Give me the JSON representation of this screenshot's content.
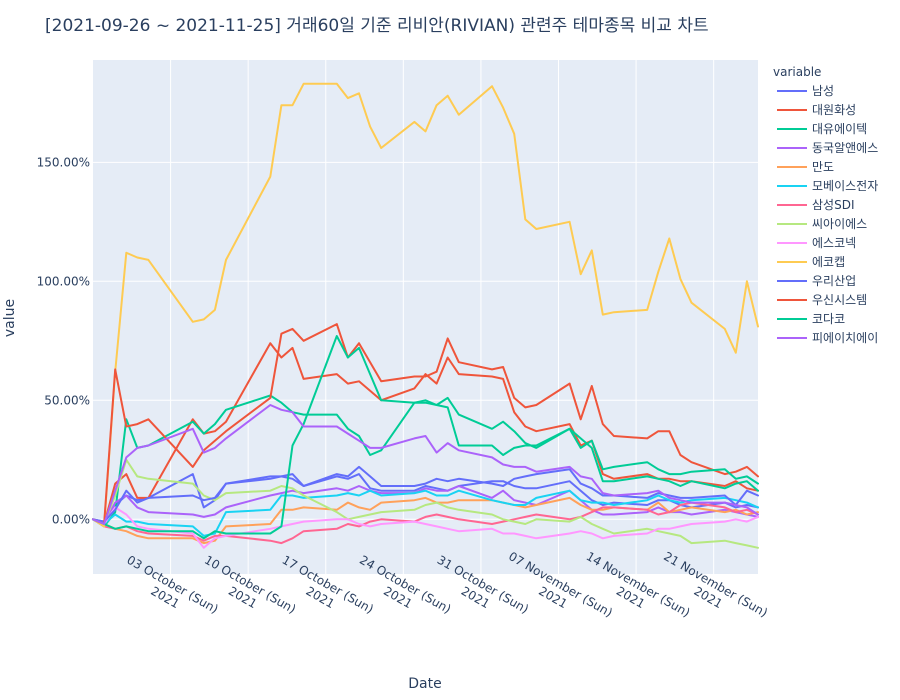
{
  "chart_data": {
    "type": "line",
    "title": "[2021-09-26 ~ 2021-11-25] 거래60일 기준 리비안(RIVIAN) 관련주 테마종목 비교 차트",
    "xlabel": "Date",
    "ylabel": "value",
    "legend_title": "variable",
    "legend_position": "right",
    "grid": true,
    "background": "#e5ecf6",
    "x_range": [
      "2021-09-26",
      "2021-11-25"
    ],
    "ylim": [
      -0.23,
      1.93
    ],
    "y_ticks": [
      {
        "value": 0.0,
        "label": "0.00%"
      },
      {
        "value": 0.5,
        "label": "50.00%"
      },
      {
        "value": 1.0,
        "label": "100.00%"
      },
      {
        "value": 1.5,
        "label": "150.00%"
      }
    ],
    "x_ticks": [
      {
        "date": "2021-10-03",
        "line1": "03 October (Sun)",
        "line2": "2021"
      },
      {
        "date": "2021-10-10",
        "line1": "10 October (Sun)",
        "line2": "2021"
      },
      {
        "date": "2021-10-17",
        "line1": "17 October (Sun)",
        "line2": "2021"
      },
      {
        "date": "2021-10-24",
        "line1": "24 October (Sun)",
        "line2": "2021"
      },
      {
        "date": "2021-10-31",
        "line1": "31 October (Sun)",
        "line2": "2021"
      },
      {
        "date": "2021-11-07",
        "line1": "07 November (Sun)",
        "line2": "2021"
      },
      {
        "date": "2021-11-14",
        "line1": "14 November (Sun)",
        "line2": "2021"
      },
      {
        "date": "2021-11-21",
        "line1": "21 November (Sun)",
        "line2": "2021"
      }
    ],
    "dates": [
      "2021-09-26",
      "2021-09-27",
      "2021-09-28",
      "2021-09-29",
      "2021-09-30",
      "2021-10-01",
      "2021-10-05",
      "2021-10-06",
      "2021-10-07",
      "2021-10-08",
      "2021-10-12",
      "2021-10-13",
      "2021-10-14",
      "2021-10-15",
      "2021-10-18",
      "2021-10-19",
      "2021-10-20",
      "2021-10-21",
      "2021-10-22",
      "2021-10-25",
      "2021-10-26",
      "2021-10-27",
      "2021-10-28",
      "2021-10-29",
      "2021-11-01",
      "2021-11-02",
      "2021-11-03",
      "2021-11-04",
      "2021-11-05",
      "2021-11-08",
      "2021-11-09",
      "2021-11-10",
      "2021-11-11",
      "2021-11-12",
      "2021-11-15",
      "2021-11-16",
      "2021-11-17",
      "2021-11-18",
      "2021-11-19",
      "2021-11-22",
      "2021-11-23",
      "2021-11-24",
      "2021-11-25"
    ],
    "series": [
      {
        "name": "남성",
        "color": "#636efa",
        "values": [
          0,
          -0.01,
          0.06,
          0.1,
          0.08,
          0.09,
          0.19,
          0.05,
          0.08,
          0.15,
          0.17,
          0.18,
          0.17,
          0.14,
          0.18,
          0.17,
          0.19,
          0.13,
          0.12,
          0.12,
          0.14,
          0.13,
          0.12,
          0.14,
          0.16,
          0.16,
          0.14,
          0.13,
          0.13,
          0.16,
          0.12,
          0.08,
          0.06,
          0.07,
          0.06,
          0.08,
          0.08,
          0.06,
          0.05,
          0.07,
          0.05,
          0.06,
          0.05
        ]
      },
      {
        "name": "대원화성",
        "color": "#EF553B",
        "values": [
          0,
          -0.02,
          0.15,
          0.19,
          0.09,
          0.09,
          0.42,
          0.36,
          0.37,
          0.41,
          0.74,
          0.68,
          0.72,
          0.59,
          0.61,
          0.57,
          0.58,
          0.54,
          0.5,
          0.55,
          0.61,
          0.57,
          0.68,
          0.61,
          0.6,
          0.59,
          0.45,
          0.39,
          0.37,
          0.4,
          0.31,
          0.33,
          0.19,
          0.17,
          0.19,
          0.17,
          0.17,
          0.16,
          0.16,
          0.14,
          0.16,
          0.13,
          0.12
        ]
      },
      {
        "name": "대유에이텍",
        "color": "#00cc96",
        "values": [
          0,
          -0.03,
          0.03,
          0.42,
          0.3,
          0.31,
          0.41,
          0.36,
          0.4,
          0.46,
          0.52,
          0.49,
          0.45,
          0.44,
          0.44,
          0.38,
          0.35,
          0.27,
          0.29,
          0.49,
          0.49,
          0.48,
          0.51,
          0.44,
          0.38,
          0.41,
          0.37,
          0.32,
          0.3,
          0.38,
          0.34,
          0.3,
          0.16,
          0.16,
          0.18,
          0.17,
          0.16,
          0.14,
          0.16,
          0.13,
          0.15,
          0.16,
          0.12
        ]
      },
      {
        "name": "동국알앤에스",
        "color": "#ab63fa",
        "values": [
          0,
          -0.02,
          0.07,
          0.1,
          0.05,
          0.03,
          0.02,
          0.01,
          0.02,
          0.05,
          0.1,
          0.11,
          0.12,
          0.11,
          0.13,
          0.12,
          0.14,
          0.12,
          0.11,
          0.11,
          0.13,
          0.12,
          0.12,
          0.14,
          0.09,
          0.12,
          0.08,
          0.07,
          0.06,
          0.12,
          0.08,
          0.04,
          0.02,
          0.02,
          0.03,
          0.05,
          0.03,
          0.03,
          0.02,
          0.04,
          0.03,
          0.02,
          0.01
        ]
      },
      {
        "name": "만도",
        "color": "#FFA15A",
        "values": [
          0,
          -0.02,
          -0.04,
          -0.05,
          -0.07,
          -0.08,
          -0.08,
          -0.1,
          -0.09,
          -0.03,
          -0.02,
          0.04,
          0.04,
          0.05,
          0.04,
          0.07,
          0.05,
          0.04,
          0.07,
          0.08,
          0.09,
          0.07,
          0.07,
          0.08,
          0.08,
          0.07,
          0.06,
          0.05,
          0.06,
          0.09,
          0.06,
          0.04,
          0.04,
          0.05,
          0.04,
          0.07,
          0.03,
          0.04,
          0.05,
          0.03,
          0.04,
          0.02,
          0.03
        ]
      },
      {
        "name": "모베이스전자",
        "color": "#19d3f3",
        "values": [
          0,
          -0.02,
          0.02,
          -0.01,
          -0.01,
          -0.02,
          -0.03,
          -0.07,
          -0.06,
          0.03,
          0.04,
          0.1,
          0.1,
          0.09,
          0.1,
          0.11,
          0.1,
          0.12,
          0.1,
          0.11,
          0.12,
          0.1,
          0.1,
          0.12,
          0.08,
          0.07,
          0.06,
          0.06,
          0.09,
          0.12,
          0.08,
          0.07,
          0.07,
          0.06,
          0.08,
          0.1,
          0.08,
          0.07,
          0.08,
          0.09,
          0.08,
          0.07,
          0.05
        ]
      },
      {
        "name": "삼성SDI",
        "color": "#FF6692",
        "values": [
          0,
          -0.03,
          -0.04,
          -0.03,
          -0.05,
          -0.06,
          -0.07,
          -0.09,
          -0.07,
          -0.07,
          -0.09,
          -0.1,
          -0.08,
          -0.05,
          -0.04,
          -0.02,
          -0.03,
          -0.01,
          0.0,
          -0.01,
          0.01,
          0.02,
          0.01,
          0.0,
          -0.02,
          -0.01,
          0.0,
          0.01,
          0.02,
          0.0,
          0.01,
          0.03,
          0.05,
          0.05,
          0.04,
          0.02,
          0.03,
          0.06,
          0.07,
          0.05,
          0.03,
          0.04,
          0.02
        ]
      },
      {
        "name": "씨아이에스",
        "color": "#B6E880",
        "values": [
          0,
          -0.02,
          0.1,
          0.25,
          0.18,
          0.17,
          0.15,
          0.1,
          0.08,
          0.11,
          0.12,
          0.14,
          0.13,
          0.1,
          0.03,
          0.0,
          0.01,
          0.02,
          0.03,
          0.04,
          0.06,
          0.07,
          0.05,
          0.04,
          0.02,
          0.0,
          -0.01,
          -0.02,
          0.0,
          -0.01,
          0.01,
          -0.02,
          -0.04,
          -0.06,
          -0.04,
          -0.05,
          -0.06,
          -0.07,
          -0.1,
          -0.09,
          -0.1,
          -0.11,
          -0.12
        ]
      },
      {
        "name": "에스코넥",
        "color": "#FF97FF",
        "values": [
          0,
          -0.02,
          0.05,
          0.02,
          -0.03,
          -0.04,
          -0.06,
          -0.12,
          -0.08,
          -0.07,
          -0.04,
          -0.03,
          -0.02,
          -0.01,
          0.0,
          0.0,
          -0.02,
          -0.03,
          -0.02,
          -0.01,
          -0.02,
          -0.03,
          -0.04,
          -0.05,
          -0.04,
          -0.06,
          -0.06,
          -0.07,
          -0.08,
          -0.06,
          -0.05,
          -0.06,
          -0.08,
          -0.07,
          -0.06,
          -0.04,
          -0.04,
          -0.03,
          -0.02,
          -0.01,
          0.0,
          -0.01,
          0.01
        ]
      },
      {
        "name": "에코캡",
        "color": "#FECB52",
        "values": [
          0,
          -0.03,
          0.62,
          1.12,
          1.1,
          1.09,
          0.83,
          0.84,
          0.88,
          1.09,
          1.44,
          1.74,
          1.74,
          1.83,
          1.83,
          1.77,
          1.79,
          1.65,
          1.56,
          1.67,
          1.63,
          1.74,
          1.78,
          1.7,
          1.82,
          1.73,
          1.62,
          1.26,
          1.22,
          1.25,
          1.03,
          1.13,
          0.86,
          0.87,
          0.88,
          1.04,
          1.18,
          1.01,
          0.91,
          0.8,
          0.7,
          1.0,
          0.81
        ]
      },
      {
        "name": "우리산업",
        "color": "#636efa",
        "values": [
          0,
          -0.01,
          0.04,
          0.12,
          0.07,
          0.09,
          0.1,
          0.08,
          0.09,
          0.15,
          0.18,
          0.18,
          0.19,
          0.14,
          0.19,
          0.18,
          0.22,
          0.18,
          0.14,
          0.14,
          0.15,
          0.17,
          0.16,
          0.17,
          0.15,
          0.14,
          0.17,
          0.18,
          0.19,
          0.21,
          0.15,
          0.13,
          0.1,
          0.1,
          0.09,
          0.11,
          0.1,
          0.09,
          0.09,
          0.1,
          0.06,
          0.12,
          0.1
        ]
      },
      {
        "name": "우신시스템",
        "color": "#EF553B",
        "values": [
          0,
          -0.02,
          0.63,
          0.39,
          0.4,
          0.42,
          0.22,
          0.29,
          0.33,
          0.37,
          0.51,
          0.78,
          0.8,
          0.75,
          0.82,
          0.68,
          0.74,
          0.66,
          0.58,
          0.6,
          0.6,
          0.62,
          0.76,
          0.66,
          0.63,
          0.64,
          0.51,
          0.47,
          0.48,
          0.57,
          0.42,
          0.56,
          0.4,
          0.35,
          0.34,
          0.37,
          0.37,
          0.27,
          0.24,
          0.19,
          0.2,
          0.22,
          0.18
        ]
      },
      {
        "name": "코다코",
        "color": "#00cc96",
        "values": [
          0,
          -0.02,
          -0.04,
          -0.03,
          -0.04,
          -0.05,
          -0.05,
          -0.08,
          -0.05,
          -0.06,
          -0.06,
          -0.03,
          0.31,
          0.4,
          0.77,
          0.68,
          0.72,
          0.61,
          0.5,
          0.49,
          0.5,
          0.48,
          0.47,
          0.31,
          0.31,
          0.27,
          0.3,
          0.31,
          0.31,
          0.38,
          0.3,
          0.33,
          0.21,
          0.22,
          0.24,
          0.21,
          0.19,
          0.19,
          0.2,
          0.21,
          0.17,
          0.18,
          0.15
        ]
      },
      {
        "name": "피에이치에이",
        "color": "#ab63fa",
        "values": [
          0,
          -0.02,
          0.12,
          0.26,
          0.3,
          0.31,
          0.38,
          0.28,
          0.3,
          0.34,
          0.48,
          0.46,
          0.45,
          0.39,
          0.39,
          0.36,
          0.33,
          0.3,
          0.3,
          0.34,
          0.35,
          0.28,
          0.32,
          0.29,
          0.26,
          0.23,
          0.22,
          0.22,
          0.2,
          0.22,
          0.18,
          0.17,
          0.11,
          0.1,
          0.11,
          0.12,
          0.09,
          0.08,
          0.07,
          0.07,
          0.06,
          0.05,
          0.02
        ]
      }
    ]
  }
}
